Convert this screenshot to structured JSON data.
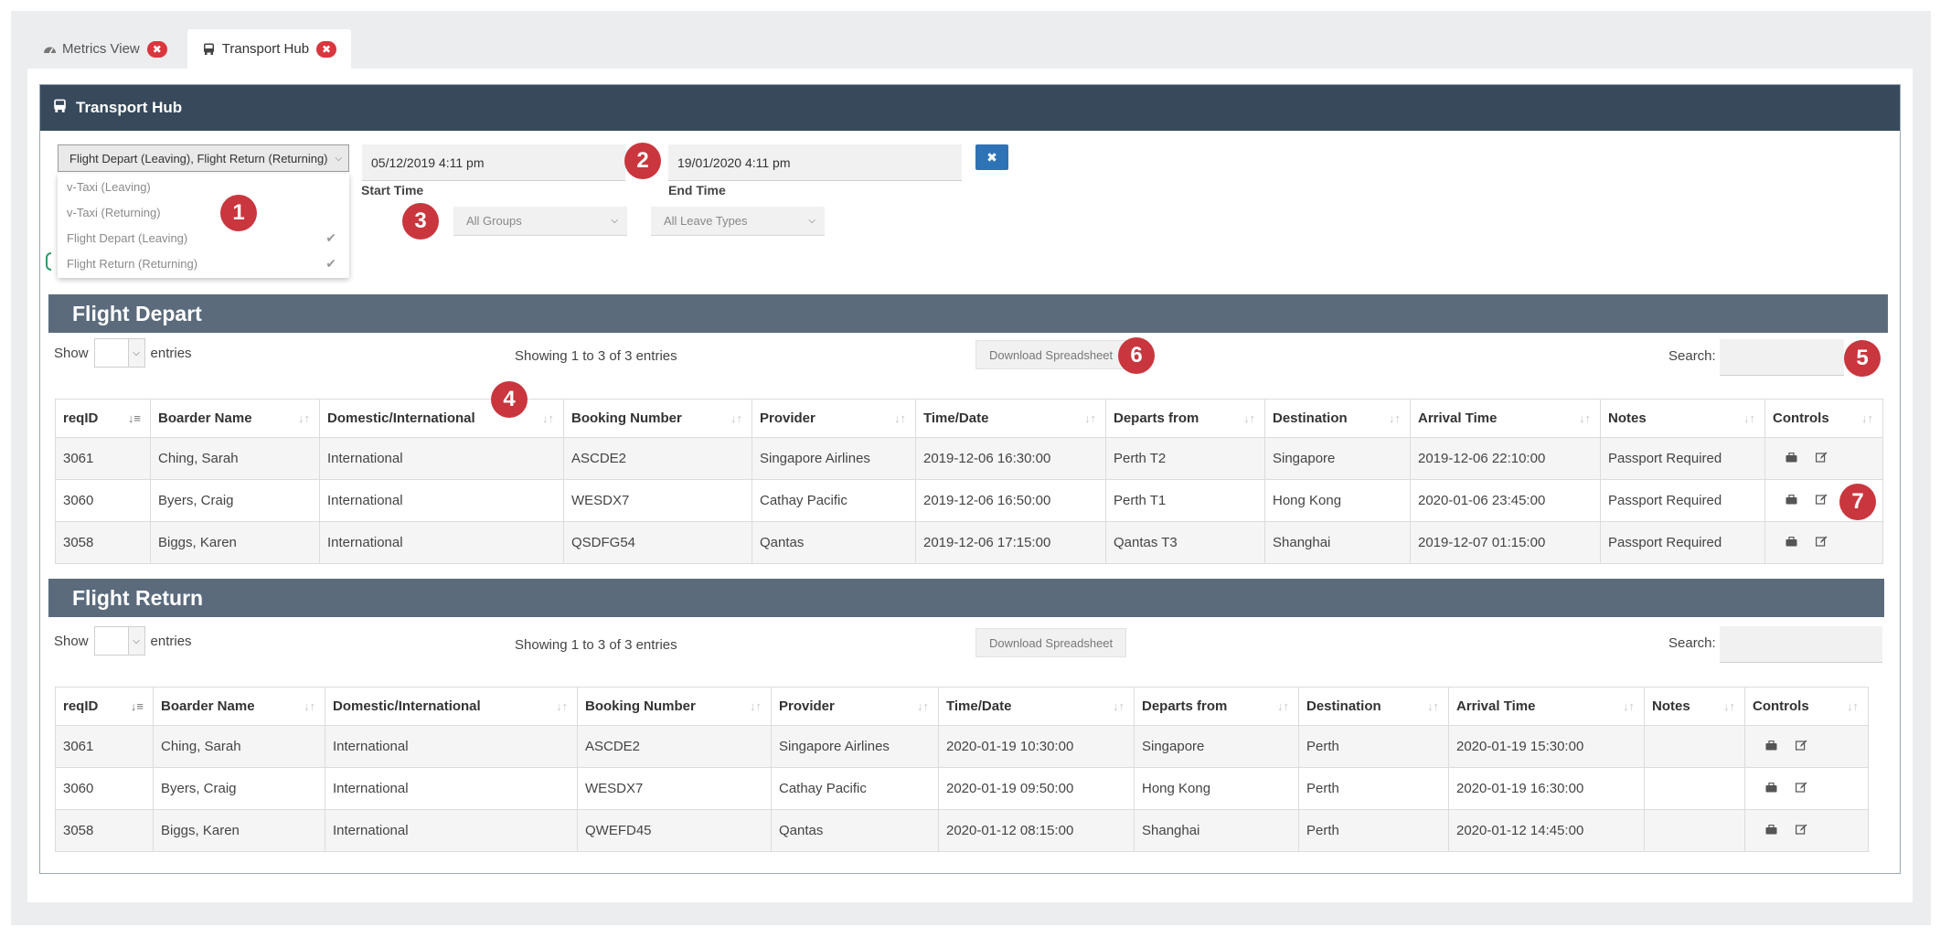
{
  "tabs": [
    {
      "label": "Metrics View",
      "icon": "speedometer-icon"
    },
    {
      "label": "Transport Hub",
      "icon": "bus-icon"
    }
  ],
  "panel": {
    "title": "Transport Hub",
    "icon": "bus-icon"
  },
  "filters": {
    "transport_select": {
      "value": "Flight Depart (Leaving), Flight Return (Returning)",
      "options": [
        {
          "label": "v-Taxi (Leaving)",
          "checked": false
        },
        {
          "label": "v-Taxi (Returning)",
          "checked": false
        },
        {
          "label": "Flight Depart (Leaving)",
          "checked": true
        },
        {
          "label": "Flight Return (Returning)",
          "checked": true
        }
      ]
    },
    "start_time": {
      "value": "05/12/2019 4:11 pm",
      "label": "Start Time"
    },
    "end_time": {
      "value": "19/01/2020 4:11 pm",
      "label": "End Time"
    },
    "clear_label": "✖",
    "groups": "All Groups",
    "leave_types": "All Leave Types"
  },
  "badges": [
    "1",
    "2",
    "3",
    "4",
    "5",
    "6",
    "7"
  ],
  "depart": {
    "title": "Flight Depart",
    "show_label": "Show",
    "entries_label": "entries",
    "info": "Showing 1 to 3 of 3 entries",
    "download_label": "Download Spreadsheet",
    "search_label": "Search:",
    "columns": [
      "reqID",
      "Boarder Name",
      "Domestic/International",
      "Booking Number",
      "Provider",
      "Time/Date",
      "Departs from",
      "Destination",
      "Arrival Time",
      "Notes",
      "Controls"
    ],
    "rows": [
      [
        "3061",
        "Ching, Sarah",
        "International",
        "ASCDE2",
        "Singapore Airlines",
        "2019-12-06 16:30:00",
        "Perth T2",
        "Singapore",
        "2019-12-06 22:10:00",
        "Passport Required"
      ],
      [
        "3060",
        "Byers, Craig",
        "International",
        "WESDX7",
        "Cathay Pacific",
        "2019-12-06 16:50:00",
        "Perth T1",
        "Hong Kong",
        "2020-01-06 23:45:00",
        "Passport Required"
      ],
      [
        "3058",
        "Biggs, Karen",
        "International",
        "QSDFG54",
        "Qantas",
        "2019-12-06 17:15:00",
        "Qantas T3",
        "Shanghai",
        "2019-12-07 01:15:00",
        "Passport Required"
      ]
    ]
  },
  "return": {
    "title": "Flight Return",
    "show_label": "Show",
    "entries_label": "entries",
    "info": "Showing 1 to 3 of 3 entries",
    "download_label": "Download Spreadsheet",
    "search_label": "Search:",
    "columns": [
      "reqID",
      "Boarder Name",
      "Domestic/International",
      "Booking Number",
      "Provider",
      "Time/Date",
      "Departs from",
      "Destination",
      "Arrival Time",
      "Notes",
      "Controls"
    ],
    "rows": [
      [
        "3061",
        "Ching, Sarah",
        "International",
        "ASCDE2",
        "Singapore Airlines",
        "2020-01-19 10:30:00",
        "Singapore",
        "Perth",
        "2020-01-19 15:30:00",
        ""
      ],
      [
        "3060",
        "Byers, Craig",
        "International",
        "WESDX7",
        "Cathay Pacific",
        "2020-01-19 09:50:00",
        "Hong Kong",
        "Perth",
        "2020-01-19 16:30:00",
        ""
      ],
      [
        "3058",
        "Biggs, Karen",
        "International",
        "QWEFD45",
        "Qantas",
        "2020-01-12 08:15:00",
        "Shanghai",
        "Perth",
        "2020-01-12 14:45:00",
        ""
      ]
    ]
  }
}
